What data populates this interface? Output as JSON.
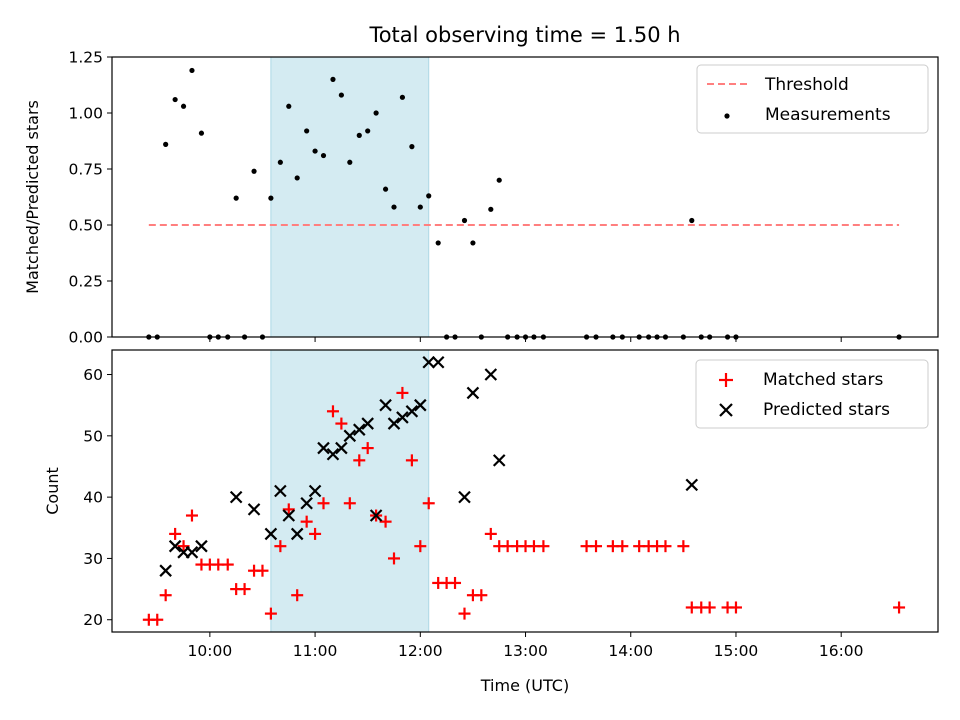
{
  "chart_data": [
    {
      "type": "scatter",
      "title": "Total observing time = 1.50 h",
      "xlabel": "",
      "ylabel": "Matched/Predicted stars",
      "xlim": [
        9.07,
        16.92
      ],
      "ylim": [
        0,
        1.25
      ],
      "yticks": [
        "0.00",
        "0.25",
        "0.50",
        "0.75",
        "1.00",
        "1.25"
      ],
      "xticks_shown": false,
      "highlight_span": {
        "x": [
          10.58,
          12.08
        ],
        "color": "#add8e6"
      },
      "legend_position": "top-right",
      "threshold": {
        "name": "Threshold",
        "value": 0.5,
        "x": [
          9.42,
          16.55
        ],
        "color": "#ff7f7f"
      },
      "series": [
        {
          "name": "Measurements",
          "color": "#000000",
          "x": [
            9.42,
            9.5,
            9.58,
            9.67,
            9.75,
            9.83,
            9.92,
            10.0,
            10.08,
            10.17,
            10.25,
            10.33,
            10.42,
            10.5,
            10.58,
            10.67,
            10.75,
            10.83,
            10.92,
            11.0,
            11.08,
            11.17,
            11.25,
            11.33,
            11.42,
            11.5,
            11.58,
            11.67,
            11.75,
            11.83,
            11.92,
            12.0,
            12.08,
            12.17,
            12.25,
            12.33,
            12.42,
            12.5,
            12.58,
            12.67,
            12.75,
            12.83,
            12.92,
            13.0,
            13.08,
            13.17,
            13.58,
            13.67,
            13.83,
            13.92,
            14.08,
            14.17,
            14.25,
            14.33,
            14.5,
            14.58,
            14.67,
            14.75,
            14.92,
            15.0,
            16.55
          ],
          "y": [
            0,
            0,
            0.86,
            1.06,
            1.03,
            1.19,
            0.91,
            0,
            0,
            0,
            0.62,
            0,
            0.74,
            0,
            0.62,
            0.78,
            1.03,
            0.71,
            0.92,
            0.83,
            0.81,
            1.15,
            1.08,
            0.78,
            0.9,
            0.92,
            1.0,
            0.66,
            0.58,
            1.07,
            0.85,
            0.58,
            0.63,
            0.42,
            0,
            0,
            0.52,
            0.42,
            0,
            0.57,
            0.7,
            0,
            0,
            0,
            0,
            0,
            0,
            0,
            0,
            0,
            0,
            0,
            0,
            0,
            0,
            0.52,
            0,
            0,
            0,
            0,
            0
          ]
        }
      ]
    },
    {
      "type": "scatter",
      "title": "",
      "xlabel": "Time (UTC)",
      "ylabel": "Count",
      "xlim": [
        9.07,
        16.92
      ],
      "ylim": [
        18,
        64
      ],
      "yticks": [
        "20",
        "30",
        "40",
        "50",
        "60"
      ],
      "xticks": [
        "10:00",
        "11:00",
        "12:00",
        "13:00",
        "14:00",
        "15:00",
        "16:00"
      ],
      "highlight_span": {
        "x": [
          10.58,
          12.08
        ],
        "color": "#add8e6"
      },
      "legend_position": "top-right",
      "series": [
        {
          "name": "Matched stars",
          "marker": "+",
          "color": "#ff0000",
          "x": [
            9.42,
            9.5,
            9.58,
            9.67,
            9.75,
            9.83,
            9.92,
            10.0,
            10.08,
            10.17,
            10.25,
            10.33,
            10.42,
            10.5,
            10.58,
            10.67,
            10.75,
            10.83,
            10.92,
            11.0,
            11.08,
            11.17,
            11.25,
            11.33,
            11.42,
            11.5,
            11.58,
            11.67,
            11.75,
            11.83,
            11.92,
            12.0,
            12.08,
            12.17,
            12.25,
            12.33,
            12.42,
            12.5,
            12.58,
            12.67,
            12.75,
            12.83,
            12.92,
            13.0,
            13.08,
            13.17,
            13.58,
            13.67,
            13.83,
            13.92,
            14.08,
            14.17,
            14.25,
            14.33,
            14.5,
            14.58,
            14.67,
            14.75,
            14.92,
            15.0,
            16.55
          ],
          "y": [
            20,
            20,
            24,
            34,
            32,
            37,
            29,
            29,
            29,
            29,
            25,
            25,
            28,
            28,
            21,
            32,
            38,
            24,
            36,
            34,
            39,
            54,
            52,
            39,
            46,
            48,
            37,
            36,
            30,
            57,
            46,
            32,
            39,
            26,
            26,
            26,
            21,
            24,
            24,
            34,
            32,
            32,
            32,
            32,
            32,
            32,
            32,
            32,
            32,
            32,
            32,
            32,
            32,
            32,
            32,
            22,
            22,
            22,
            22,
            22,
            22
          ]
        },
        {
          "name": "Predicted stars",
          "marker": "x",
          "color": "#000000",
          "x": [
            9.58,
            9.67,
            9.75,
            9.83,
            9.92,
            10.25,
            10.42,
            10.58,
            10.67,
            10.75,
            10.83,
            10.92,
            11.0,
            11.08,
            11.17,
            11.25,
            11.33,
            11.42,
            11.5,
            11.58,
            11.67,
            11.75,
            11.83,
            11.92,
            12.0,
            12.08,
            12.17,
            12.42,
            12.5,
            12.67,
            12.75,
            14.58
          ],
          "y": [
            28,
            32,
            31,
            31,
            32,
            40,
            38,
            34,
            41,
            37,
            34,
            39,
            41,
            48,
            47,
            48,
            50,
            51,
            52,
            37,
            55,
            52,
            53,
            54,
            55,
            62,
            62,
            40,
            57,
            60,
            46,
            42
          ]
        }
      ]
    }
  ]
}
